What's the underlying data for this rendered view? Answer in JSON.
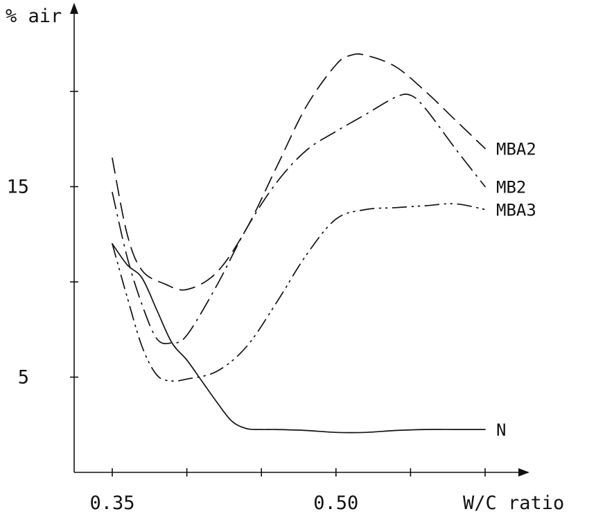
{
  "chart_data": {
    "type": "line",
    "title": "",
    "xlabel": "W/C ratio",
    "ylabel": "% air",
    "xlim": [
      0.31,
      0.61
    ],
    "ylim": [
      0,
      23.3
    ],
    "x_ticks": [
      0.35,
      0.4,
      0.45,
      0.5,
      0.55,
      0.6
    ],
    "x_tick_labels": [
      "0.35",
      "",
      "",
      "0.50",
      "",
      ""
    ],
    "y_ticks": [
      5,
      10,
      15,
      20
    ],
    "y_tick_labels": [
      "5",
      "",
      "15",
      ""
    ],
    "grid": false,
    "series": [
      {
        "name": "MBA2",
        "style": "dashed",
        "x": [
          0.35,
          0.36,
          0.37,
          0.385,
          0.4,
          0.42,
          0.44,
          0.46,
          0.48,
          0.5,
          0.51,
          0.52,
          0.54,
          0.56,
          0.58,
          0.6
        ],
        "y": [
          16.5,
          12.5,
          10.6,
          9.9,
          9.6,
          10.5,
          12.8,
          16.0,
          19.2,
          21.4,
          21.9,
          21.9,
          21.3,
          20.0,
          18.5,
          17.0
        ]
      },
      {
        "name": "MB2",
        "style": "long dash dot",
        "x": [
          0.35,
          0.36,
          0.37,
          0.38,
          0.39,
          0.4,
          0.42,
          0.44,
          0.46,
          0.48,
          0.5,
          0.52,
          0.54,
          0.55,
          0.56,
          0.58,
          0.6
        ],
        "y": [
          14.7,
          11.3,
          8.8,
          7.0,
          6.8,
          7.2,
          9.8,
          12.8,
          15.2,
          16.9,
          17.9,
          18.8,
          19.7,
          19.8,
          19.1,
          17.0,
          15.0
        ]
      },
      {
        "name": "MBA3",
        "style": "dash dot dot",
        "x": [
          0.35,
          0.36,
          0.37,
          0.38,
          0.39,
          0.4,
          0.42,
          0.44,
          0.46,
          0.48,
          0.5,
          0.52,
          0.54,
          0.56,
          0.58,
          0.6
        ],
        "y": [
          12.0,
          9.2,
          6.6,
          5.1,
          4.8,
          4.9,
          5.3,
          6.6,
          8.9,
          11.4,
          13.3,
          13.8,
          13.9,
          14.0,
          14.1,
          13.8
        ]
      },
      {
        "name": "N",
        "style": "solid",
        "x": [
          0.35,
          0.36,
          0.37,
          0.38,
          0.39,
          0.4,
          0.41,
          0.42,
          0.43,
          0.44,
          0.45,
          0.46,
          0.48,
          0.5,
          0.52,
          0.54,
          0.56,
          0.58,
          0.6
        ],
        "y": [
          12.0,
          10.9,
          10.2,
          8.5,
          6.8,
          5.9,
          4.8,
          3.7,
          2.7,
          2.3,
          2.25,
          2.25,
          2.2,
          2.1,
          2.1,
          2.2,
          2.25,
          2.25,
          2.25
        ]
      }
    ]
  }
}
